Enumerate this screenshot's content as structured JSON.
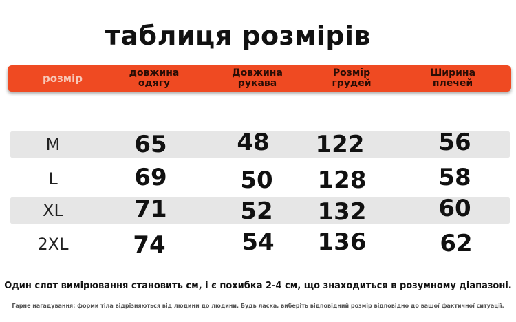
{
  "title": "таблиця розмірів",
  "header": {
    "size_col": "розмір",
    "columns": [
      [
        "довжина",
        "одягу"
      ],
      [
        "Довжина",
        "рукава"
      ],
      [
        "Розмір",
        "грудей"
      ],
      [
        "Ширина",
        "плечей"
      ]
    ]
  },
  "colors": {
    "header_bg": "#ef4a22",
    "row_shade": "#e6e6e6"
  },
  "rows": [
    {
      "size": "M",
      "values": [
        "65",
        "48",
        "122",
        "56"
      ],
      "shaded": true
    },
    {
      "size": "L",
      "values": [
        "69",
        "50",
        "128",
        "58"
      ],
      "shaded": false
    },
    {
      "size": "XL",
      "values": [
        "71",
        "52",
        "132",
        "60"
      ],
      "shaded": true
    },
    {
      "size": "2XL",
      "values": [
        "74",
        "54",
        "136",
        "62"
      ],
      "shaded": false
    }
  ],
  "note_main": "Один слот вимірювання становить см, і є похибка 2-4 см, що знаходиться в розумному діапазоні.",
  "note_small": "Гарне нагадування: форми тіла відрізняються від людини до людини. Будь ласка, виберіть відповідний розмір відповідно до вашої фактичної ситуації."
}
